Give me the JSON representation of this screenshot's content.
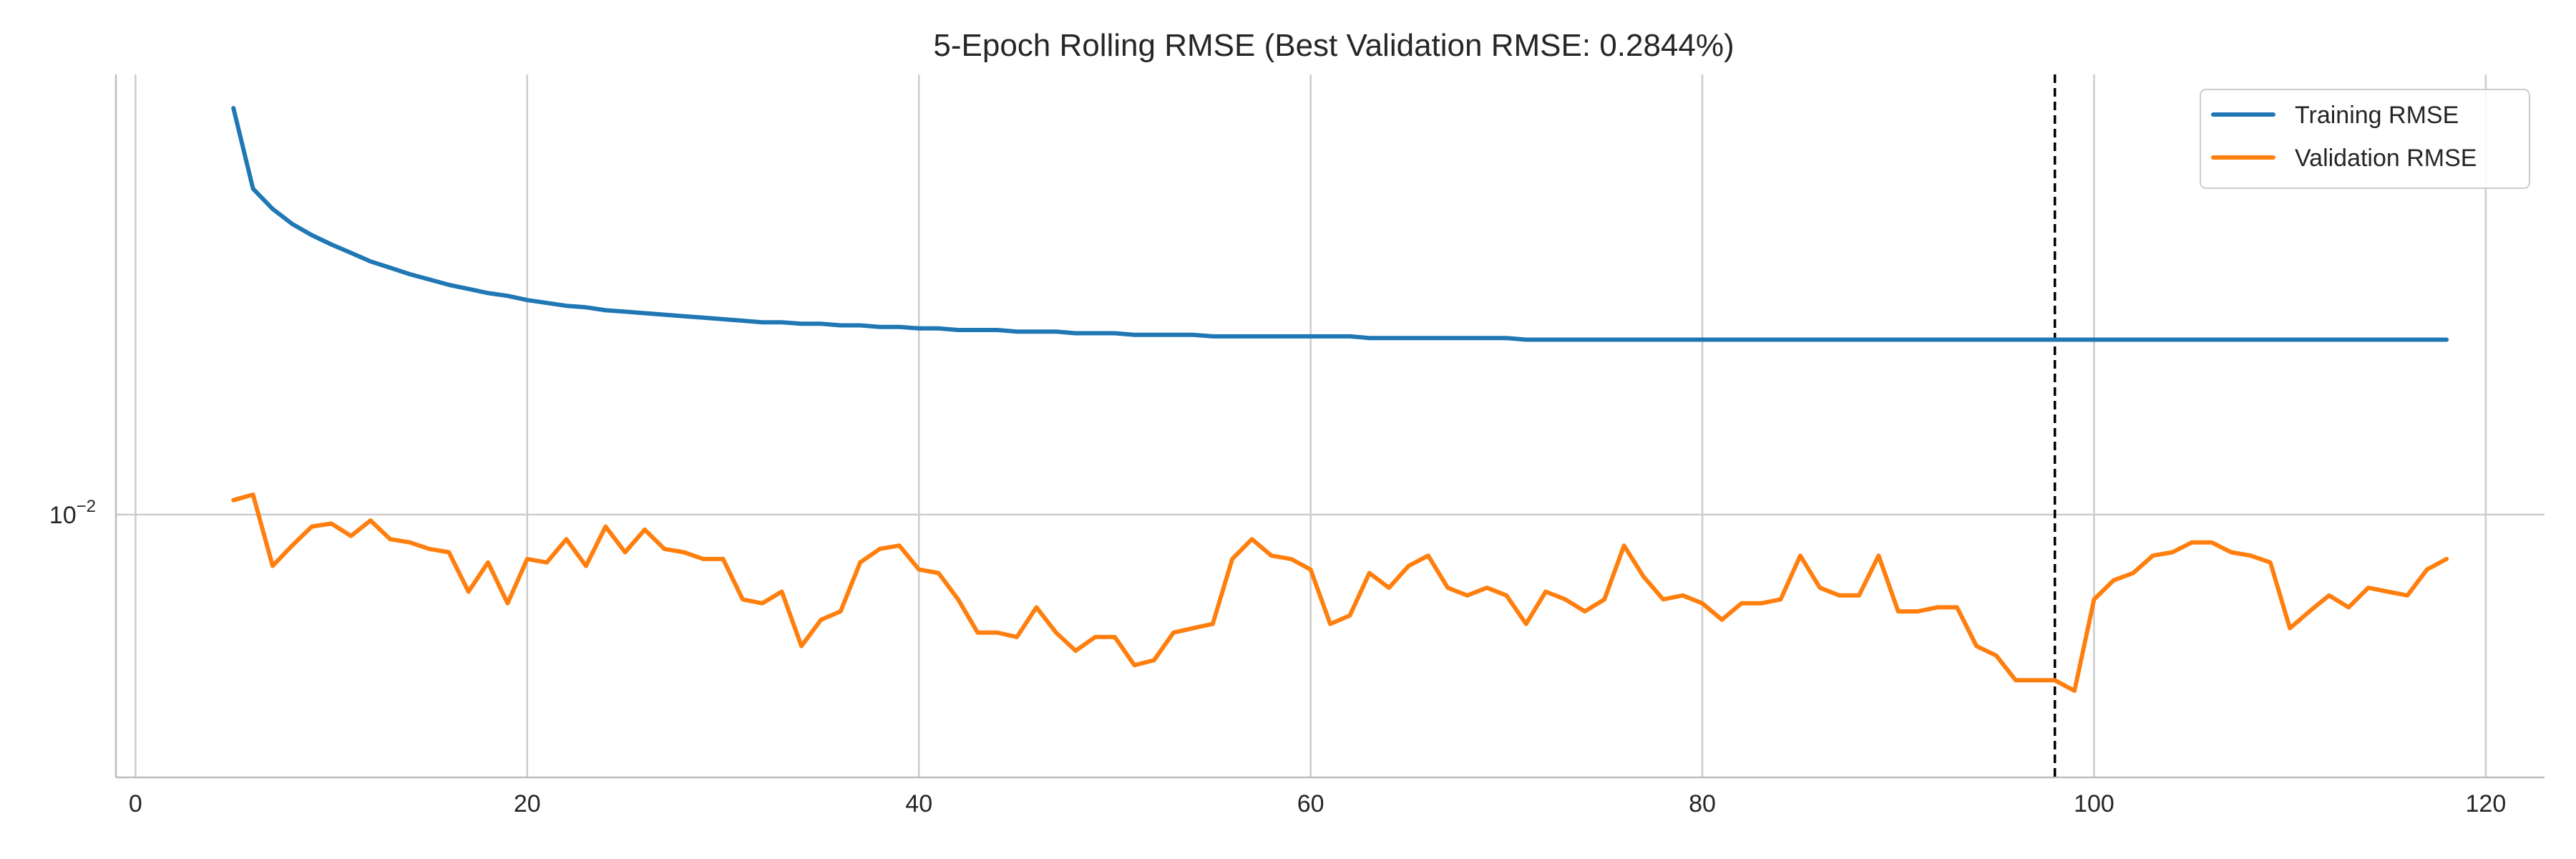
{
  "chart_data": {
    "type": "line",
    "title": "5-Epoch Rolling RMSE (Best Validation RMSE: 0.2844%)",
    "xlabel": "",
    "ylabel": "",
    "xlim": [
      -1,
      123
    ],
    "ylim": [
      0.0041,
      0.0445
    ],
    "y_scale": "log",
    "grid": true,
    "legend_position": "upper right",
    "x_ticks": [
      0,
      20,
      40,
      60,
      80,
      100,
      120
    ],
    "x_tick_labels": [
      "0",
      "20",
      "40",
      "60",
      "80",
      "100",
      "120"
    ],
    "y_ticks": [
      0.01
    ],
    "y_tick_labels": [
      {
        "base": "10",
        "exp": "−2"
      }
    ],
    "vline": {
      "x": 98,
      "style": "dashed",
      "color": "#000000"
    },
    "series": [
      {
        "name": "Training RMSE",
        "color": "#1f77b4",
        "x": [
          5,
          6,
          7,
          8,
          9,
          10,
          11,
          12,
          13,
          14,
          15,
          16,
          17,
          18,
          19,
          20,
          21,
          22,
          23,
          24,
          25,
          26,
          27,
          28,
          29,
          30,
          31,
          32,
          33,
          34,
          35,
          36,
          37,
          38,
          39,
          40,
          41,
          42,
          43,
          44,
          45,
          46,
          47,
          48,
          49,
          50,
          51,
          52,
          53,
          54,
          55,
          56,
          57,
          58,
          59,
          60,
          61,
          62,
          63,
          64,
          65,
          66,
          67,
          68,
          69,
          70,
          71,
          72,
          73,
          74,
          75,
          76,
          77,
          78,
          79,
          80,
          81,
          82,
          83,
          84,
          85,
          86,
          87,
          88,
          89,
          90,
          91,
          92,
          93,
          94,
          95,
          96,
          97,
          98,
          99,
          100,
          101,
          102,
          103,
          104,
          105,
          106,
          107,
          108,
          109,
          110,
          111,
          112,
          113,
          114,
          115,
          116,
          117,
          118
        ],
        "values": [
          0.0397,
          0.0302,
          0.0282,
          0.0268,
          0.0258,
          0.025,
          0.0243,
          0.0236,
          0.0231,
          0.0226,
          0.0222,
          0.0218,
          0.0215,
          0.0212,
          0.021,
          0.0207,
          0.0205,
          0.0203,
          0.0202,
          0.02,
          0.0199,
          0.0198,
          0.0197,
          0.0196,
          0.0195,
          0.0194,
          0.0193,
          0.0192,
          0.0192,
          0.0191,
          0.0191,
          0.019,
          0.019,
          0.0189,
          0.0189,
          0.0188,
          0.0188,
          0.0187,
          0.0187,
          0.0187,
          0.0186,
          0.0186,
          0.0186,
          0.0185,
          0.0185,
          0.0185,
          0.0184,
          0.0184,
          0.0184,
          0.0184,
          0.0183,
          0.0183,
          0.0183,
          0.0183,
          0.0183,
          0.0183,
          0.0183,
          0.0183,
          0.0182,
          0.0182,
          0.0182,
          0.0182,
          0.0182,
          0.0182,
          0.0182,
          0.0182,
          0.0181,
          0.0181,
          0.0181,
          0.0181,
          0.0181,
          0.0181,
          0.0181,
          0.0181,
          0.0181,
          0.0181,
          0.0181,
          0.0181,
          0.0181,
          0.0181,
          0.0181,
          0.0181,
          0.0181,
          0.0181,
          0.0181,
          0.0181,
          0.0181,
          0.0181,
          0.0181,
          0.0181,
          0.0181,
          0.0181,
          0.0181,
          0.0181,
          0.0181,
          0.0181,
          0.0181,
          0.0181,
          0.0181,
          0.0181,
          0.0181,
          0.0181,
          0.0181,
          0.0181,
          0.0181,
          0.0181,
          0.0181,
          0.0181,
          0.0181,
          0.0181,
          0.0181,
          0.0181,
          0.0181,
          0.0181
        ]
      },
      {
        "name": "Validation RMSE",
        "color": "#ff7f0e",
        "x": [
          5,
          6,
          7,
          8,
          9,
          10,
          11,
          12,
          13,
          14,
          15,
          16,
          17,
          18,
          19,
          20,
          21,
          22,
          23,
          24,
          25,
          26,
          27,
          28,
          29,
          30,
          31,
          32,
          33,
          34,
          35,
          36,
          37,
          38,
          39,
          40,
          41,
          42,
          43,
          44,
          45,
          46,
          47,
          48,
          49,
          50,
          51,
          52,
          53,
          54,
          55,
          56,
          57,
          58,
          59,
          60,
          61,
          62,
          63,
          64,
          65,
          66,
          67,
          68,
          69,
          70,
          71,
          72,
          73,
          74,
          75,
          76,
          77,
          78,
          79,
          80,
          81,
          82,
          83,
          84,
          85,
          86,
          87,
          88,
          89,
          90,
          91,
          92,
          93,
          94,
          95,
          96,
          97,
          98,
          99,
          100,
          101,
          102,
          103,
          104,
          105,
          106,
          107,
          108,
          109,
          110,
          111,
          112,
          113,
          114,
          115,
          116,
          117,
          118
        ],
        "values": [
          0.0105,
          0.0107,
          0.0084,
          0.009,
          0.0096,
          0.0097,
          0.0093,
          0.0098,
          0.0092,
          0.0091,
          0.0089,
          0.0088,
          0.0077,
          0.0085,
          0.0074,
          0.0086,
          0.0085,
          0.0092,
          0.0084,
          0.0096,
          0.0088,
          0.0095,
          0.0089,
          0.0088,
          0.0086,
          0.0086,
          0.0075,
          0.0074,
          0.0077,
          0.0064,
          0.007,
          0.0072,
          0.0085,
          0.0089,
          0.009,
          0.0083,
          0.0082,
          0.0075,
          0.0067,
          0.0067,
          0.0066,
          0.0073,
          0.0067,
          0.0063,
          0.0066,
          0.0066,
          0.006,
          0.0061,
          0.0067,
          0.0068,
          0.0069,
          0.0086,
          0.0092,
          0.0087,
          0.0086,
          0.0083,
          0.0069,
          0.0071,
          0.0082,
          0.0078,
          0.0084,
          0.0087,
          0.0078,
          0.0076,
          0.0078,
          0.0076,
          0.0069,
          0.0077,
          0.0075,
          0.0072,
          0.0075,
          0.009,
          0.0081,
          0.0075,
          0.0076,
          0.0074,
          0.007,
          0.0074,
          0.0074,
          0.0075,
          0.0087,
          0.0078,
          0.0076,
          0.0076,
          0.0087,
          0.0072,
          0.0072,
          0.0073,
          0.0073,
          0.0064,
          0.0062,
          0.0057,
          0.0057,
          0.0057,
          0.0055,
          0.0075,
          0.008,
          0.0082,
          0.0087,
          0.0088,
          0.0091,
          0.0091,
          0.0088,
          0.0087,
          0.0085,
          0.0068,
          0.0072,
          0.0076,
          0.0073,
          0.0078,
          0.0077,
          0.0076,
          0.0083,
          0.0086
        ]
      }
    ]
  }
}
